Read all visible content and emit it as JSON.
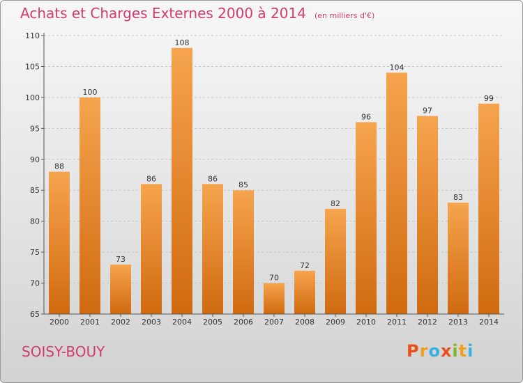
{
  "header": {
    "title": "Achats et Charges Externes 2000 à 2014",
    "unit": "(en milliers d'€)"
  },
  "footer": {
    "commune": "SOISY-BOUY",
    "logo": [
      "P",
      "r",
      "o",
      "x",
      "i",
      "t",
      "i"
    ],
    "logo_colors": [
      "#e8501a",
      "#f0a020",
      "#3ab0e0",
      "#e8501a",
      "#7ab828",
      "#f0a020",
      "#3ab0e0"
    ]
  },
  "colors": {
    "bar_top": "#f6a44e",
    "bar_bottom": "#d06a10",
    "accent": "#d23c6e"
  },
  "chart_data": {
    "type": "bar",
    "categories": [
      "2000",
      "2001",
      "2002",
      "2003",
      "2004",
      "2005",
      "2006",
      "2007",
      "2008",
      "2009",
      "2010",
      "2011",
      "2012",
      "2013",
      "2014"
    ],
    "values": [
      88,
      100,
      73,
      86,
      108,
      86,
      85,
      70,
      72,
      82,
      96,
      104,
      97,
      83,
      99
    ],
    "ylim": [
      65,
      110
    ],
    "yticks": [
      65,
      70,
      75,
      80,
      85,
      90,
      95,
      100,
      105,
      110
    ],
    "grid": "horizontal dashed"
  }
}
